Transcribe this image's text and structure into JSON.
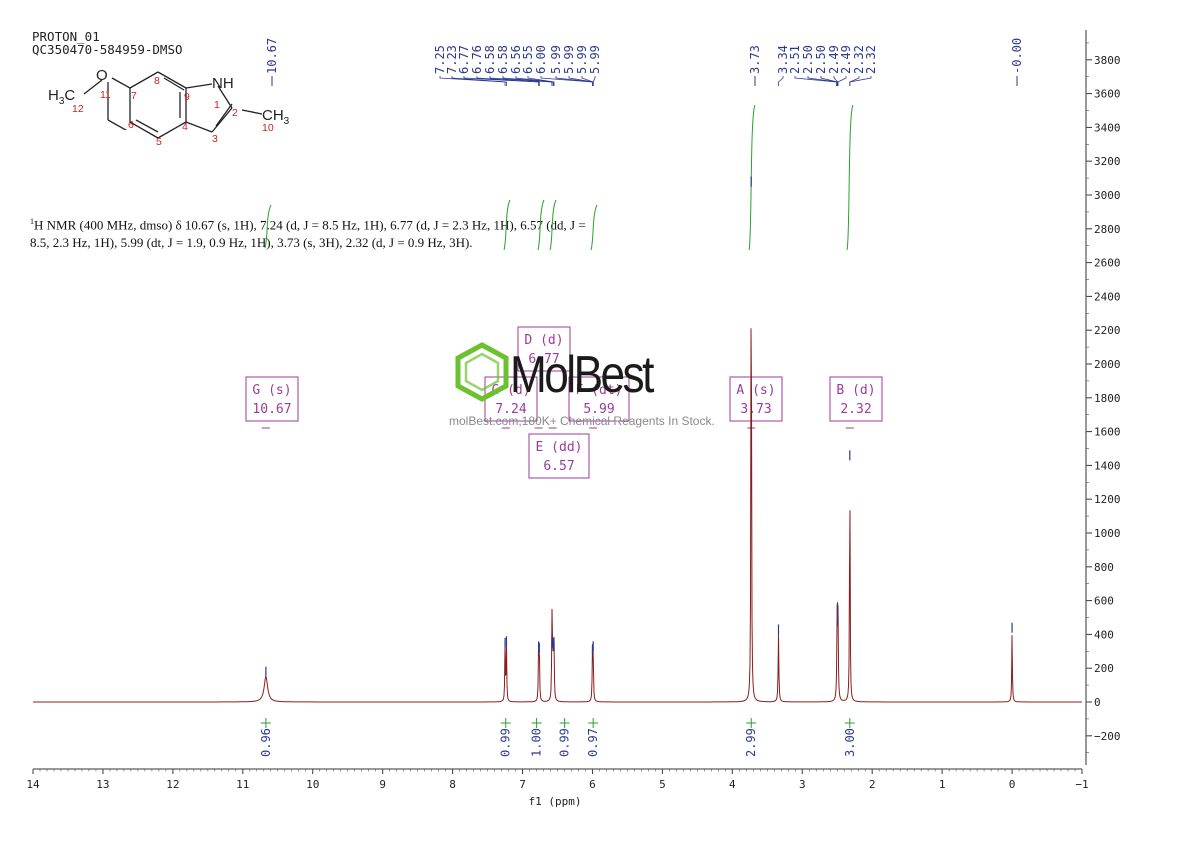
{
  "header": {
    "line1": "PROTON_01",
    "line2": "QC350470-584959-DMSO"
  },
  "nmr_description": {
    "prefix_sup": "1",
    "text": "H NMR (400 MHz, dmso) δ 10.67 (s, 1H), 7.24 (d, J = 8.5 Hz, 1H), 6.77 (d, J = 2.3 Hz, 1H), 6.57 (dd, J = 8.5, 2.3 Hz, 1H), 5.99 (dt, J = 1.9, 0.9 Hz, 1H), 3.73 (s, 3H), 2.32 (d, J = 0.9 Hz, 3H)."
  },
  "watermark": {
    "logo": "MolBest",
    "tagline": "molBest.com,180K+ Chemical Reagents In Stock."
  },
  "structure": {
    "labels": [
      "H3C",
      "O",
      "NH",
      "CH3"
    ],
    "atom_numbers": [
      "1",
      "2",
      "3",
      "4",
      "5",
      "6",
      "7",
      "8",
      "9",
      "10",
      "11",
      "12"
    ]
  },
  "colors": {
    "spectrum": "#8b1c1c",
    "integral": "#2aa02a",
    "peak_label": "#2b3a8f",
    "multiplet_box": "#9b3c9b",
    "atom_number": "#d02020"
  },
  "chart_data": {
    "type": "line",
    "xlabel": "f1 (ppm)",
    "xlim": [
      14,
      -1
    ],
    "ylim": [
      -300,
      4000
    ],
    "x_ticks": [
      14,
      13,
      12,
      11,
      10,
      9,
      8,
      7,
      6,
      5,
      4,
      3,
      2,
      1,
      0,
      -1
    ],
    "y_ticks": [
      3800,
      3600,
      3400,
      3200,
      3000,
      2800,
      2600,
      2400,
      2200,
      2000,
      1800,
      1600,
      1400,
      1200,
      1000,
      800,
      600,
      400,
      200,
      0,
      -200
    ],
    "peaks": [
      {
        "x": 10.67,
        "y": 150,
        "w": 0.03
      },
      {
        "x": 7.25,
        "y": 320,
        "w": 0.005
      },
      {
        "x": 7.23,
        "y": 330,
        "w": 0.005
      },
      {
        "x": 6.77,
        "y": 300,
        "w": 0.005
      },
      {
        "x": 6.76,
        "y": 290,
        "w": 0.005
      },
      {
        "x": 6.58,
        "y": 320,
        "w": 0.005
      },
      {
        "x": 6.575,
        "y": 340,
        "w": 0.005
      },
      {
        "x": 6.56,
        "y": 310,
        "w": 0.005
      },
      {
        "x": 6.55,
        "y": 300,
        "w": 0.005
      },
      {
        "x": 6.0,
        "y": 280,
        "w": 0.005
      },
      {
        "x": 5.99,
        "y": 300,
        "w": 0.005
      },
      {
        "x": 3.73,
        "y": 3050,
        "w": 0.005
      },
      {
        "x": 3.34,
        "y": 400,
        "w": 0.006
      },
      {
        "x": 2.5,
        "y": 520,
        "w": 0.006
      },
      {
        "x": 2.49,
        "y": 450,
        "w": 0.006
      },
      {
        "x": 2.32,
        "y": 1430,
        "w": 0.005
      },
      {
        "x": 0.0,
        "y": 410,
        "w": 0.005
      }
    ],
    "peak_labels": [
      {
        "group": "g1",
        "values": [
          "10.67"
        ]
      },
      {
        "group": "g2",
        "values": [
          "7.25",
          "7.23",
          "6.77",
          "6.76",
          "6.58",
          "6.58",
          "6.56",
          "6.55",
          "6.00",
          "5.99",
          "5.99",
          "5.99",
          "5.99"
        ]
      },
      {
        "group": "g3",
        "values": [
          "3.73"
        ]
      },
      {
        "group": "g4",
        "values": [
          "3.34",
          "2.51",
          "2.50",
          "2.50",
          "2.49",
          "2.49",
          "2.32",
          "2.32"
        ]
      },
      {
        "group": "g5",
        "values": [
          "-0.00"
        ]
      }
    ],
    "multiplets": [
      {
        "name": "G (s)",
        "shift": "10.67",
        "x": 10.67
      },
      {
        "name": "C (d)",
        "shift": "7.24",
        "x": 7.24
      },
      {
        "name": "D (d)",
        "shift": "6.77",
        "x": 6.77
      },
      {
        "name": "F (dt)",
        "shift": "5.99",
        "x": 5.99
      },
      {
        "name": "E (dd)",
        "shift": "6.57",
        "x": 6.57
      },
      {
        "name": "A (s)",
        "shift": "3.73",
        "x": 3.73
      },
      {
        "name": "B (d)",
        "shift": "2.32",
        "x": 2.32
      }
    ],
    "integrals": [
      {
        "x": 10.67,
        "label": "0.96"
      },
      {
        "x": 7.24,
        "label": "0.99"
      },
      {
        "x": 6.77,
        "label": "1.00"
      },
      {
        "x": 6.57,
        "label": "0.99"
      },
      {
        "x": 5.99,
        "label": "0.97"
      },
      {
        "x": 3.73,
        "label": "2.99"
      },
      {
        "x": 2.32,
        "label": "3.00"
      }
    ]
  }
}
